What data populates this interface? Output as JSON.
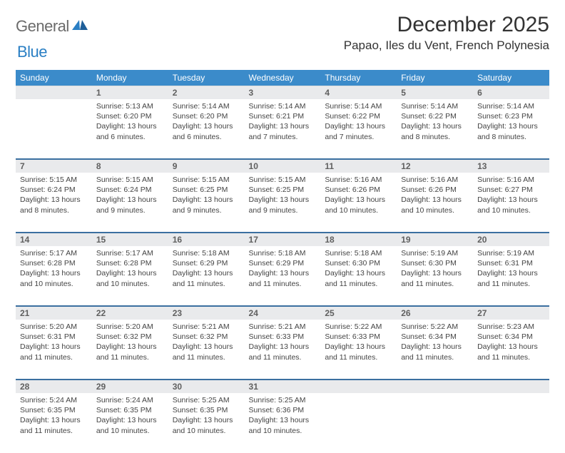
{
  "brand": {
    "word1": "General",
    "word2": "Blue"
  },
  "title": "December 2025",
  "location": "Papao, Iles du Vent, French Polynesia",
  "colors": {
    "header_bg": "#3b8bca",
    "header_text": "#ffffff",
    "daynum_bg": "#e9eaec",
    "daynum_text": "#606060",
    "row_divider": "#3b6fa0",
    "logo_gray": "#6b6b6b",
    "logo_blue": "#2a7fc4"
  },
  "day_headers": [
    "Sunday",
    "Monday",
    "Tuesday",
    "Wednesday",
    "Thursday",
    "Friday",
    "Saturday"
  ],
  "weeks": [
    {
      "nums": [
        "",
        "1",
        "2",
        "3",
        "4",
        "5",
        "6"
      ],
      "cells": [
        null,
        {
          "sunrise": "5:13 AM",
          "sunset": "6:20 PM",
          "daylight": "13 hours and 6 minutes."
        },
        {
          "sunrise": "5:14 AM",
          "sunset": "6:20 PM",
          "daylight": "13 hours and 6 minutes."
        },
        {
          "sunrise": "5:14 AM",
          "sunset": "6:21 PM",
          "daylight": "13 hours and 7 minutes."
        },
        {
          "sunrise": "5:14 AM",
          "sunset": "6:22 PM",
          "daylight": "13 hours and 7 minutes."
        },
        {
          "sunrise": "5:14 AM",
          "sunset": "6:22 PM",
          "daylight": "13 hours and 8 minutes."
        },
        {
          "sunrise": "5:14 AM",
          "sunset": "6:23 PM",
          "daylight": "13 hours and 8 minutes."
        }
      ]
    },
    {
      "nums": [
        "7",
        "8",
        "9",
        "10",
        "11",
        "12",
        "13"
      ],
      "cells": [
        {
          "sunrise": "5:15 AM",
          "sunset": "6:24 PM",
          "daylight": "13 hours and 8 minutes."
        },
        {
          "sunrise": "5:15 AM",
          "sunset": "6:24 PM",
          "daylight": "13 hours and 9 minutes."
        },
        {
          "sunrise": "5:15 AM",
          "sunset": "6:25 PM",
          "daylight": "13 hours and 9 minutes."
        },
        {
          "sunrise": "5:15 AM",
          "sunset": "6:25 PM",
          "daylight": "13 hours and 9 minutes."
        },
        {
          "sunrise": "5:16 AM",
          "sunset": "6:26 PM",
          "daylight": "13 hours and 10 minutes."
        },
        {
          "sunrise": "5:16 AM",
          "sunset": "6:26 PM",
          "daylight": "13 hours and 10 minutes."
        },
        {
          "sunrise": "5:16 AM",
          "sunset": "6:27 PM",
          "daylight": "13 hours and 10 minutes."
        }
      ]
    },
    {
      "nums": [
        "14",
        "15",
        "16",
        "17",
        "18",
        "19",
        "20"
      ],
      "cells": [
        {
          "sunrise": "5:17 AM",
          "sunset": "6:28 PM",
          "daylight": "13 hours and 10 minutes."
        },
        {
          "sunrise": "5:17 AM",
          "sunset": "6:28 PM",
          "daylight": "13 hours and 10 minutes."
        },
        {
          "sunrise": "5:18 AM",
          "sunset": "6:29 PM",
          "daylight": "13 hours and 11 minutes."
        },
        {
          "sunrise": "5:18 AM",
          "sunset": "6:29 PM",
          "daylight": "13 hours and 11 minutes."
        },
        {
          "sunrise": "5:18 AM",
          "sunset": "6:30 PM",
          "daylight": "13 hours and 11 minutes."
        },
        {
          "sunrise": "5:19 AM",
          "sunset": "6:30 PM",
          "daylight": "13 hours and 11 minutes."
        },
        {
          "sunrise": "5:19 AM",
          "sunset": "6:31 PM",
          "daylight": "13 hours and 11 minutes."
        }
      ]
    },
    {
      "nums": [
        "21",
        "22",
        "23",
        "24",
        "25",
        "26",
        "27"
      ],
      "cells": [
        {
          "sunrise": "5:20 AM",
          "sunset": "6:31 PM",
          "daylight": "13 hours and 11 minutes."
        },
        {
          "sunrise": "5:20 AM",
          "sunset": "6:32 PM",
          "daylight": "13 hours and 11 minutes."
        },
        {
          "sunrise": "5:21 AM",
          "sunset": "6:32 PM",
          "daylight": "13 hours and 11 minutes."
        },
        {
          "sunrise": "5:21 AM",
          "sunset": "6:33 PM",
          "daylight": "13 hours and 11 minutes."
        },
        {
          "sunrise": "5:22 AM",
          "sunset": "6:33 PM",
          "daylight": "13 hours and 11 minutes."
        },
        {
          "sunrise": "5:22 AM",
          "sunset": "6:34 PM",
          "daylight": "13 hours and 11 minutes."
        },
        {
          "sunrise": "5:23 AM",
          "sunset": "6:34 PM",
          "daylight": "13 hours and 11 minutes."
        }
      ]
    },
    {
      "nums": [
        "28",
        "29",
        "30",
        "31",
        "",
        "",
        ""
      ],
      "cells": [
        {
          "sunrise": "5:24 AM",
          "sunset": "6:35 PM",
          "daylight": "13 hours and 11 minutes."
        },
        {
          "sunrise": "5:24 AM",
          "sunset": "6:35 PM",
          "daylight": "13 hours and 10 minutes."
        },
        {
          "sunrise": "5:25 AM",
          "sunset": "6:35 PM",
          "daylight": "13 hours and 10 minutes."
        },
        {
          "sunrise": "5:25 AM",
          "sunset": "6:36 PM",
          "daylight": "13 hours and 10 minutes."
        },
        null,
        null,
        null
      ]
    }
  ],
  "labels": {
    "sunrise": "Sunrise:",
    "sunset": "Sunset:",
    "daylight": "Daylight:"
  }
}
